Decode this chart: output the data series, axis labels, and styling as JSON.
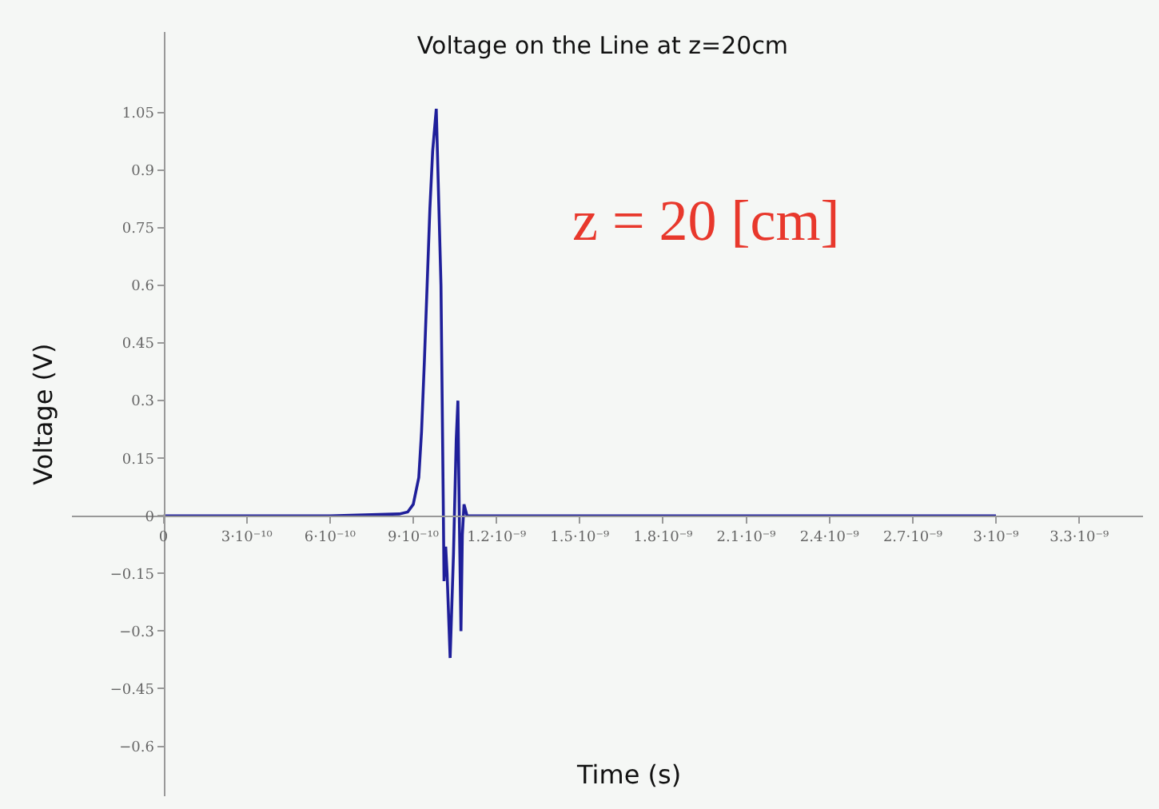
{
  "chart_data": {
    "type": "line",
    "title": "Voltage on the Line at z=20cm",
    "xlabel": "Time (s)",
    "ylabel": "Voltage (V)",
    "x": [
      0,
      3e-10,
      6e-10,
      8.5e-10,
      8.8e-10,
      9e-10,
      9.2e-10,
      9.3e-10,
      9.4e-10,
      9.5e-10,
      9.6e-10,
      9.7e-10,
      9.83e-10,
      1e-09,
      1.008e-09,
      1.011e-09,
      1.017e-09,
      1.022e-09,
      1.033e-09,
      1.045e-09,
      1.055e-09,
      1.061e-09,
      1.066e-09,
      1.072e-09,
      1.077e-09,
      1.083e-09,
      1.094e-09,
      1.5e-09,
      2e-09,
      2.5e-09,
      3e-09
    ],
    "series": [
      {
        "color": "#1f1f9a",
        "values": [
          0,
          0,
          0,
          0.005,
          0.01,
          0.03,
          0.1,
          0.22,
          0.4,
          0.6,
          0.8,
          0.95,
          1.06,
          0.6,
          0.05,
          -0.17,
          -0.08,
          -0.15,
          -0.37,
          -0.1,
          0.2,
          0.3,
          0.0,
          -0.3,
          -0.05,
          0.03,
          0,
          0,
          0,
          0,
          0
        ]
      }
    ],
    "xlim": [
      -3.3e-10,
      3.53e-09
    ],
    "ylim": [
      -0.73,
      1.26
    ],
    "xticks": [
      0,
      {
        "value": 3e-10,
        "label": "3·10⁻¹⁰"
      },
      {
        "value": 6e-10,
        "label": "6·10⁻¹⁰"
      },
      {
        "value": 9e-10,
        "label": "9·10⁻¹⁰"
      },
      {
        "value": 1.2e-09,
        "label": "1.2·10⁻⁹"
      },
      {
        "value": 1.5e-09,
        "label": "1.5·10⁻⁹"
      },
      {
        "value": 1.8e-09,
        "label": "1.8·10⁻⁹"
      },
      {
        "value": 2.1e-09,
        "label": "2.1·10⁻⁹"
      },
      {
        "value": 2.4e-09,
        "label": "2.4·10⁻⁹"
      },
      {
        "value": 2.7e-09,
        "label": "2.7·10⁻⁹"
      },
      {
        "value": 3e-09,
        "label": "3·10⁻⁹"
      },
      {
        "value": 3.3e-09,
        "label": "3.3·10⁻⁹"
      }
    ],
    "yticks": [
      {
        "value": -0.6,
        "label": "−0.6"
      },
      {
        "value": -0.45,
        "label": "−0.45"
      },
      {
        "value": -0.3,
        "label": "−0.3"
      },
      {
        "value": -0.15,
        "label": "−0.15"
      },
      0,
      0.15,
      0.3,
      0.45,
      0.6,
      0.75,
      0.9,
      1.05
    ],
    "annotations": [
      "z = 20 [cm]"
    ],
    "grid": false,
    "marker": "none",
    "line_style": "solid"
  }
}
